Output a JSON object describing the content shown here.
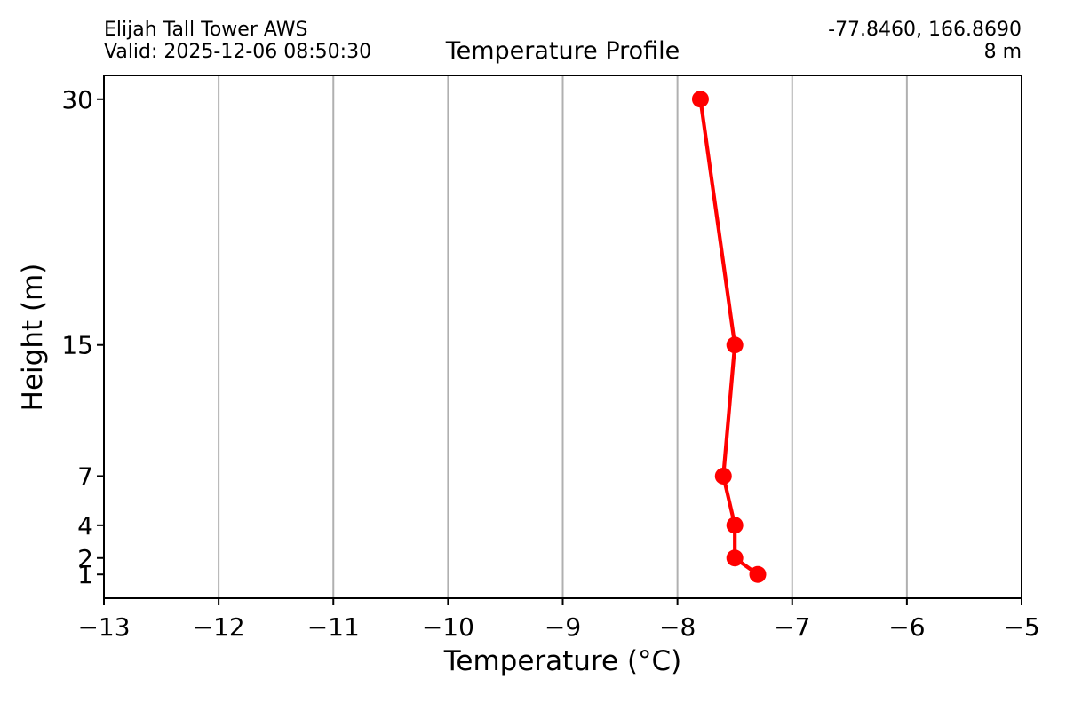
{
  "chart_data": {
    "type": "line",
    "title": "Temperature Profile",
    "header_left": {
      "station_name": "Elijah Tall Tower AWS",
      "valid_time": "Valid: 2025-12-06 08:50:30"
    },
    "header_right": {
      "coordinates": "-77.8460, 166.8690",
      "elevation": "8 m"
    },
    "xlabel": "Temperature (°C)",
    "ylabel": "Height (m)",
    "xlim": [
      -13,
      -5
    ],
    "ylim": [
      -0.45,
      31.45
    ],
    "xticks": [
      -13,
      -12,
      -11,
      -10,
      -9,
      -8,
      -7,
      -6,
      -5
    ],
    "xtick_labels": [
      "−13",
      "−12",
      "−11",
      "−10",
      "−9",
      "−8",
      "−7",
      "−6",
      "−5"
    ],
    "yticks": [
      1,
      2,
      4,
      7,
      15,
      30
    ],
    "ytick_labels": [
      "1",
      "2",
      "4",
      "7",
      "15",
      "30"
    ],
    "grid": "vertical-only",
    "grid_color": "#b0b0b0",
    "line_color": "#ff0000",
    "marker": "circle",
    "series": [
      {
        "name": "temperature-profile",
        "points": [
          {
            "height_m": 30,
            "temp_c": -7.8
          },
          {
            "height_m": 15,
            "temp_c": -7.5
          },
          {
            "height_m": 7,
            "temp_c": -7.6
          },
          {
            "height_m": 4,
            "temp_c": -7.5
          },
          {
            "height_m": 2,
            "temp_c": -7.5
          },
          {
            "height_m": 1,
            "temp_c": -7.3
          }
        ]
      }
    ]
  }
}
